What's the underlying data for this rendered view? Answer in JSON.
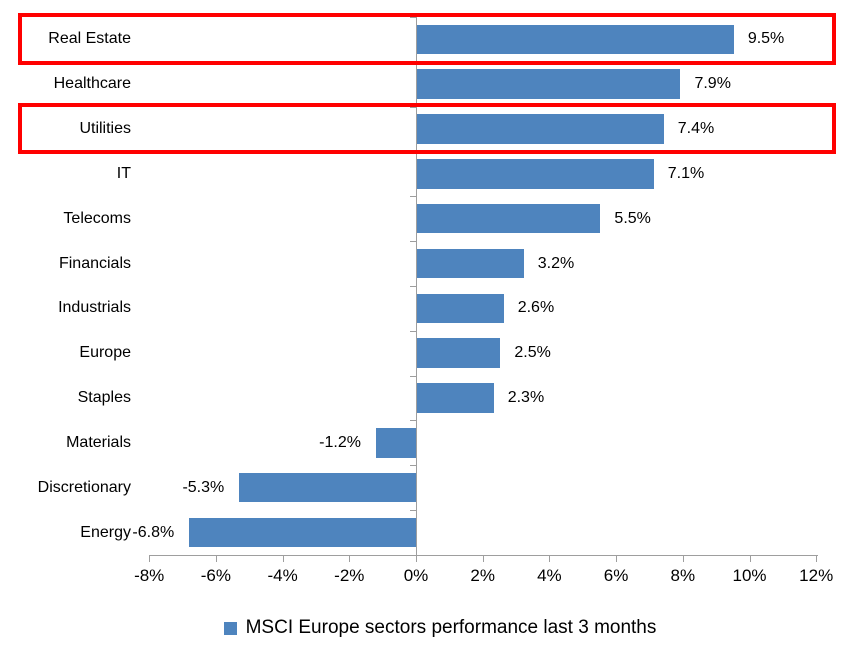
{
  "chart_data": {
    "type": "bar",
    "orientation": "horizontal",
    "title": "",
    "categories": [
      "Real Estate",
      "Healthcare",
      "Utilities",
      "IT",
      "Telecoms",
      "Financials",
      "Industrials",
      "Europe",
      "Staples",
      "Materials",
      "Discretionary",
      "Energy"
    ],
    "values": [
      9.5,
      7.9,
      7.4,
      7.1,
      5.5,
      3.2,
      2.6,
      2.5,
      2.3,
      -1.2,
      -5.3,
      -6.8
    ],
    "value_labels": [
      "9.5%",
      "7.9%",
      "7.4%",
      "7.1%",
      "5.5%",
      "3.2%",
      "2.6%",
      "2.5%",
      "2.3%",
      "-1.2%",
      "-5.3%",
      "-6.8%"
    ],
    "xlim": [
      -8,
      12
    ],
    "x_tick_step": 2,
    "x_tick_labels": [
      "-8%",
      "-6%",
      "-4%",
      "-2%",
      "0%",
      "2%",
      "4%",
      "6%",
      "8%",
      "10%",
      "12%"
    ],
    "grid": false,
    "legend": "MSCI Europe sectors performance last 3 months",
    "legend_position": "bottom",
    "highlighted_categories": [
      "Real Estate",
      "Utilities"
    ],
    "colors": {
      "bar": "#4E84BE",
      "highlight_box": "#FF0000",
      "axis": "#9E9E9E",
      "text": "#000000",
      "background": "#FFFFFF"
    }
  }
}
